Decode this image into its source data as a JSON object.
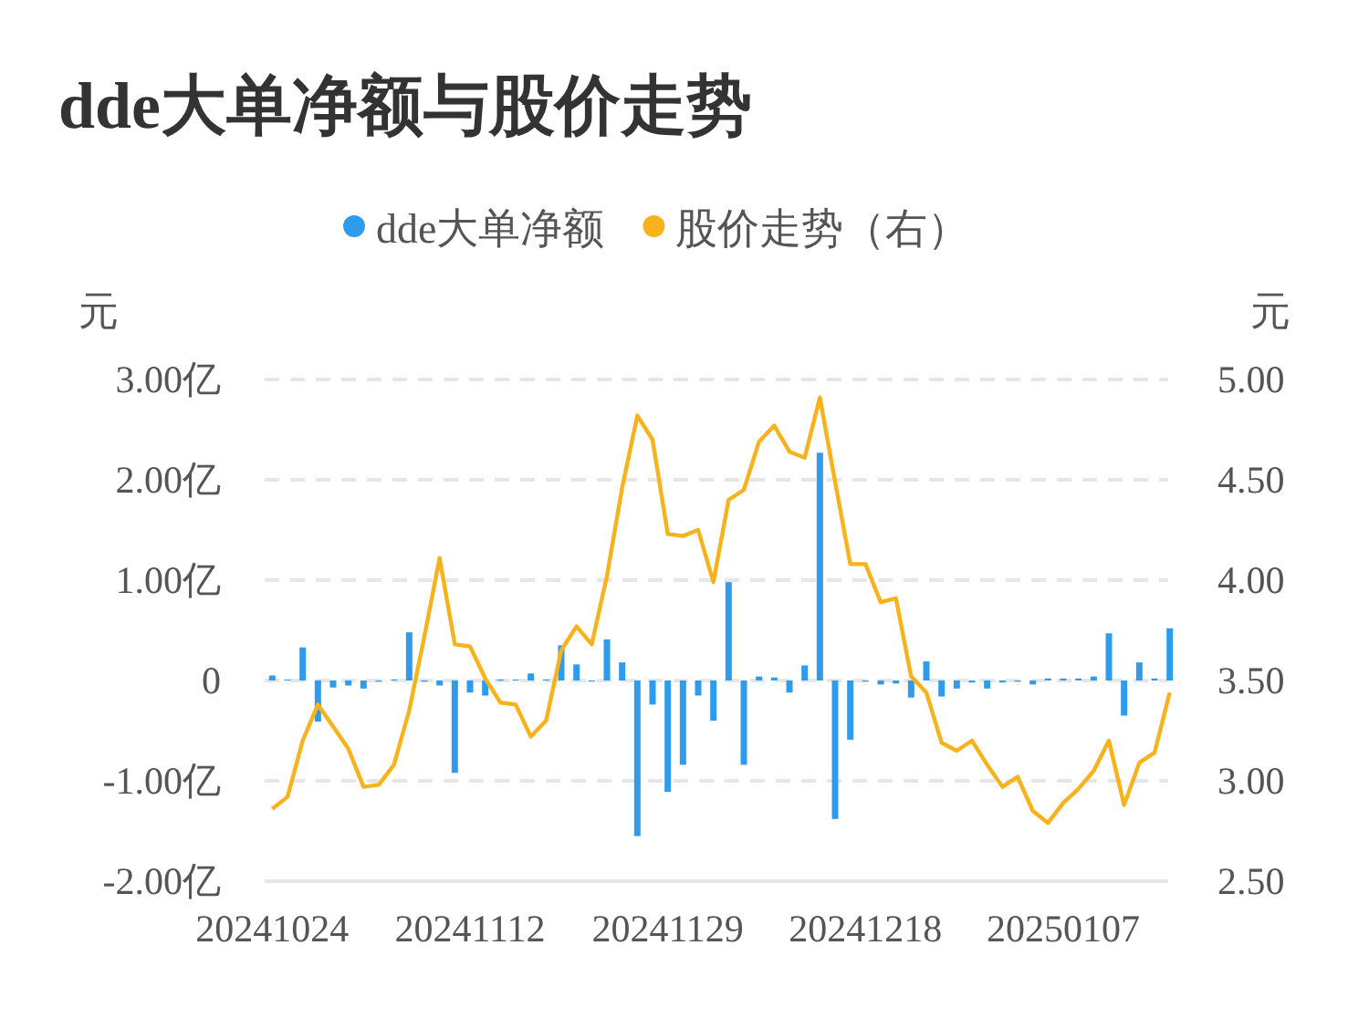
{
  "chart_data": {
    "type": "bar",
    "title": "dde大单净额与股价走势",
    "ylabel": "元",
    "y2label": "元",
    "categories": [
      "20241024",
      null,
      null,
      null,
      null,
      null,
      null,
      null,
      null,
      null,
      null,
      null,
      null,
      "20241112",
      null,
      null,
      null,
      null,
      null,
      null,
      null,
      null,
      null,
      null,
      null,
      null,
      "20241129",
      null,
      null,
      null,
      null,
      null,
      null,
      null,
      null,
      null,
      null,
      null,
      null,
      "20241218",
      null,
      null,
      null,
      null,
      null,
      null,
      null,
      null,
      null,
      null,
      null,
      null,
      "20250107",
      null,
      null,
      null,
      null,
      null,
      null,
      null
    ],
    "series": [
      {
        "name": "dde大单净额",
        "color": "#2f9bec",
        "values": [
          0.05,
          0.01,
          0.33,
          -0.41,
          -0.07,
          -0.05,
          -0.08,
          -0.01,
          0.01,
          0.48,
          0.0,
          -0.05,
          -0.92,
          -0.12,
          -0.15,
          0.01,
          0.01,
          0.07,
          0.01,
          0.35,
          0.16,
          0.0,
          0.41,
          0.18,
          -1.55,
          -0.24,
          -1.11,
          -0.84,
          -0.15,
          -0.4,
          0.98,
          -0.84,
          0.04,
          0.03,
          -0.12,
          0.15,
          2.27,
          -1.38,
          -0.59,
          -0.01,
          -0.04,
          -0.03,
          -0.17,
          0.19,
          -0.16,
          -0.08,
          -0.02,
          -0.08,
          -0.02,
          0.0,
          -0.04,
          0.02,
          0.02,
          0.02,
          0.04,
          0.47,
          -0.35,
          0.18,
          0.02,
          0.52
        ]
      },
      {
        "name": "股价走势（右）",
        "type": "line",
        "axis": "y2",
        "color": "#f7b21c",
        "values": [
          2.86,
          2.92,
          3.2,
          3.38,
          3.27,
          3.16,
          2.97,
          2.98,
          3.08,
          3.35,
          3.72,
          4.11,
          3.68,
          3.67,
          3.51,
          3.39,
          3.38,
          3.22,
          3.3,
          3.65,
          3.77,
          3.68,
          4.02,
          4.46,
          4.82,
          4.7,
          4.23,
          4.22,
          4.25,
          3.99,
          4.4,
          4.45,
          4.69,
          4.77,
          4.64,
          4.61,
          4.91,
          4.49,
          4.08,
          4.08,
          3.89,
          3.91,
          3.52,
          3.44,
          3.19,
          3.15,
          3.2,
          3.08,
          2.97,
          3.02,
          2.85,
          2.79,
          2.89,
          2.96,
          3.05,
          3.2,
          2.88,
          3.09,
          3.14,
          3.44
        ]
      }
    ],
    "ylim": [
      -2,
      3
    ],
    "yticks": [
      {
        "value": -2,
        "label": "-2.00亿"
      },
      {
        "value": -1,
        "label": "-1.00亿"
      },
      {
        "value": 0,
        "label": "0"
      },
      {
        "value": 1,
        "label": "1.00亿"
      },
      {
        "value": 2,
        "label": "2.00亿"
      },
      {
        "value": 3,
        "label": "3.00亿"
      }
    ],
    "y2lim": [
      2.5,
      5
    ],
    "y2ticks": [
      {
        "value": 2.5,
        "label": "2.50"
      },
      {
        "value": 3,
        "label": "3.00"
      },
      {
        "value": 3.5,
        "label": "3.50"
      },
      {
        "value": 4,
        "label": "4.00"
      },
      {
        "value": 4.5,
        "label": "4.50"
      },
      {
        "value": 5,
        "label": "5.00"
      }
    ],
    "grid": "y",
    "legend": "top",
    "marker": "none",
    "line_style": "solid"
  }
}
